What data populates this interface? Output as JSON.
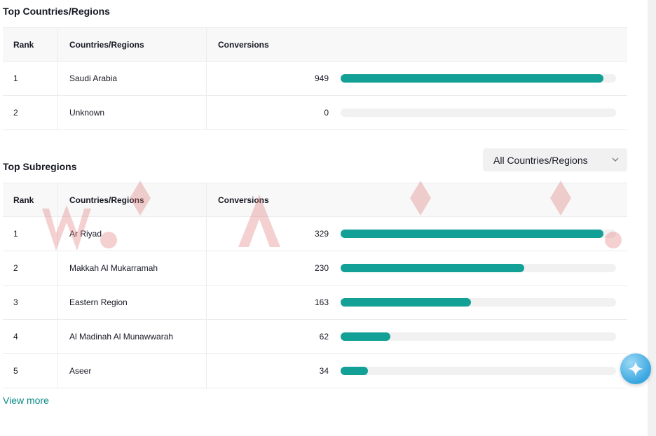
{
  "top_countries": {
    "title": "Top Countries/Regions",
    "headers": {
      "rank": "Rank",
      "name": "Countries/Regions",
      "conversions": "Conversions"
    },
    "rows": [
      {
        "rank": "1",
        "name": "Saudi Arabia",
        "conversions": "949",
        "share": 1.0
      },
      {
        "rank": "2",
        "name": "Unknown",
        "conversions": "0",
        "share": 0.0
      }
    ]
  },
  "top_subregions": {
    "title": "Top Subregions",
    "filter": {
      "selected": "All Countries/Regions"
    },
    "headers": {
      "rank": "Rank",
      "name": "Countries/Regions",
      "conversions": "Conversions"
    },
    "rows": [
      {
        "rank": "1",
        "name": "Ar Riyad",
        "conversions": "329",
        "share": 1.0
      },
      {
        "rank": "2",
        "name": "Makkah Al Mukarramah",
        "conversions": "230",
        "share": 0.699
      },
      {
        "rank": "3",
        "name": "Eastern Region",
        "conversions": "163",
        "share": 0.495
      },
      {
        "rank": "4",
        "name": "Al Madinah Al Munawwarah",
        "conversions": "62",
        "share": 0.188
      },
      {
        "rank": "5",
        "name": "Aseer",
        "conversions": "34",
        "share": 0.103
      }
    ],
    "view_more": "View more"
  },
  "colors": {
    "accent": "#13a097",
    "track": "#f1f1f2",
    "link": "#0b8a86"
  },
  "icons": {
    "dropdown": "chevron-down-icon",
    "assistant": "sparkle-icon"
  }
}
